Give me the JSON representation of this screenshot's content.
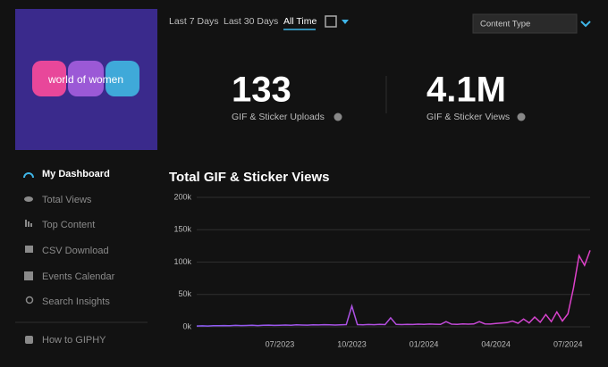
{
  "logo": {
    "text": "world of women"
  },
  "nav": [
    "My Dashboard",
    "Total Views",
    "Top Content",
    "CSV Download",
    "Events Calendar",
    "Search Insights",
    "How to GIPHY"
  ],
  "filters": [
    "Last 7 Days",
    "Last 30 Days",
    "All Time"
  ],
  "dropdown": "Content Type",
  "stats": [
    {
      "value": "133",
      "label": "GIF & Sticker Uploads"
    },
    {
      "value": "4.1M",
      "label": "GIF & Sticker Views"
    }
  ],
  "chart_data": {
    "type": "line",
    "title": "Total GIF & Sticker Views",
    "categories": [
      null,
      null,
      null,
      null,
      null,
      null,
      null,
      null,
      null,
      null,
      null,
      null,
      null,
      null,
      null,
      "07/2023",
      null,
      null,
      null,
      null,
      null,
      null,
      null,
      null,
      null,
      null,
      null,
      null,
      "10/2023",
      null,
      null,
      null,
      null,
      null,
      null,
      null,
      null,
      null,
      null,
      null,
      null,
      "01/2024",
      null,
      null,
      null,
      null,
      null,
      null,
      null,
      null,
      null,
      null,
      null,
      null,
      "04/2024",
      null,
      null,
      null,
      null,
      null,
      null,
      null,
      null,
      null,
      null,
      null,
      null,
      "07/2024",
      null,
      null,
      null,
      null
    ],
    "values": [
      1200,
      1500,
      1300,
      1800,
      1600,
      2000,
      1700,
      2200,
      1900,
      2100,
      2400,
      2000,
      2300,
      2600,
      2200,
      2500,
      2800,
      2400,
      3000,
      2700,
      2600,
      3100,
      2900,
      3300,
      3000,
      2800,
      3200,
      3500,
      32000,
      3400,
      3100,
      3600,
      3300,
      3800,
      3500,
      14000,
      3700,
      3400,
      3900,
      3600,
      4100,
      3800,
      4300,
      4000,
      3700,
      8000,
      4200,
      3900,
      4500,
      4100,
      4400,
      8000,
      4600,
      4300,
      5200,
      5800,
      6500,
      9000,
      5500,
      12000,
      6000,
      15000,
      7000,
      19000,
      8000,
      23000,
      9000,
      20000,
      60000,
      110000,
      95000,
      118000
    ],
    "colors": [
      "#8b5cf6",
      "#e040c8"
    ],
    "ylim": [
      0,
      200000
    ],
    "yticks": [
      {
        "value": 0,
        "label": "0k"
      },
      {
        "value": 50000,
        "label": "50k"
      },
      {
        "value": 100000,
        "label": "100k"
      },
      {
        "value": 150000,
        "label": "150k"
      },
      {
        "value": 200000,
        "label": "200k"
      }
    ],
    "grid": true
  }
}
